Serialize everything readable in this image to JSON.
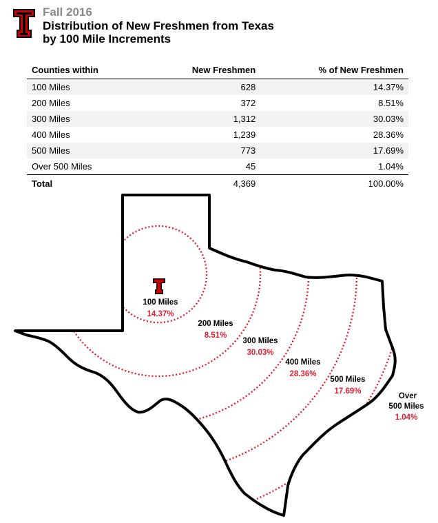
{
  "header": {
    "season": "Fall 2016",
    "title_line1": "Distribution of New Freshmen from Texas",
    "title_line2": "by 100 Mile Increments"
  },
  "table": {
    "columns": [
      "Counties within",
      "New Freshmen",
      "% of New Freshmen"
    ],
    "rows": [
      {
        "label": "100 Miles",
        "freshmen": "628",
        "percent": "14.37%"
      },
      {
        "label": "200 Miles",
        "freshmen": "372",
        "percent": "8.51%"
      },
      {
        "label": "300 Miles",
        "freshmen": "1,312",
        "percent": "30.03%"
      },
      {
        "label": "400 Miles",
        "freshmen": "1,239",
        "percent": "28.36%"
      },
      {
        "label": "500 Miles",
        "freshmen": "773",
        "percent": "17.69%"
      },
      {
        "label": "Over 500 Miles",
        "freshmen": "45",
        "percent": "1.04%"
      }
    ],
    "total": {
      "label": "Total",
      "freshmen": "4,369",
      "percent": "100.00%"
    }
  },
  "map": {
    "zones": [
      {
        "label": "100 Miles",
        "percent": "14.37%"
      },
      {
        "label": "200 Miles",
        "percent": "8.51%"
      },
      {
        "label": "300 Miles",
        "percent": "30.03%"
      },
      {
        "label": "400 Miles",
        "percent": "28.36%"
      },
      {
        "label": "500 Miles",
        "percent": "17.69%"
      },
      {
        "label_line1": "Over",
        "label_line2": "500 Miles",
        "percent": "1.04%"
      }
    ]
  },
  "colors": {
    "brand_red": "#cc0000",
    "percent_red": "#e0202e",
    "ring_red": "#e0202e",
    "stripe_gray": "#f2f2f2"
  },
  "icons": [
    "double-t-logo-icon"
  ]
}
